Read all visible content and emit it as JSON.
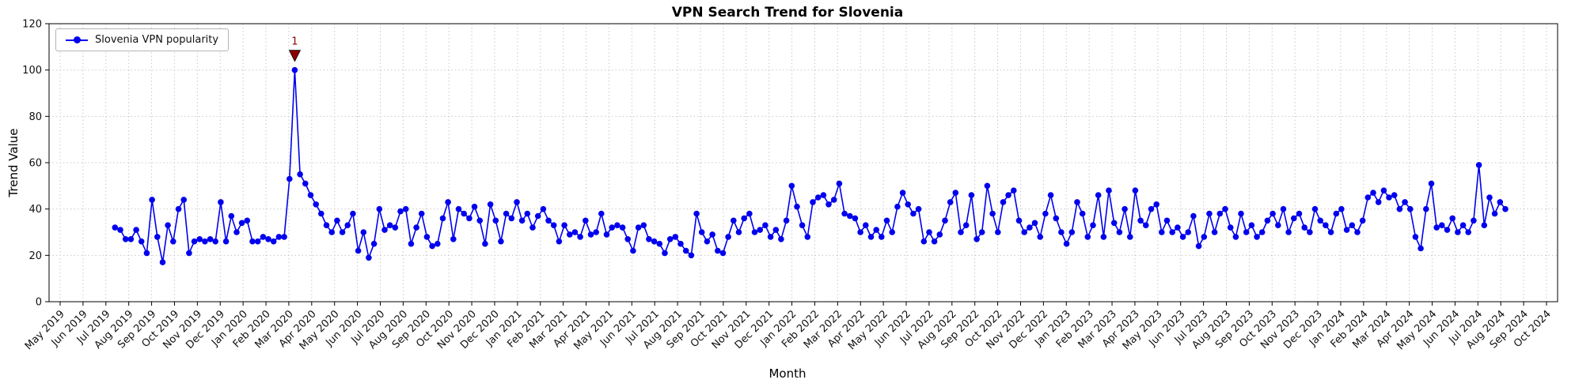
{
  "chart_data": {
    "type": "line",
    "title": "VPN Search Trend for Slovenia",
    "xlabel": "Month",
    "ylabel": "Trend Value",
    "ylim": [
      0,
      120
    ],
    "y_ticks": [
      0,
      20,
      40,
      60,
      80,
      100,
      120
    ],
    "grid": true,
    "legend_position": "upper left",
    "x_tick_labels": [
      "May 2019",
      "Jun 2019",
      "Jul 2019",
      "Aug 2019",
      "Sep 2019",
      "Oct 2019",
      "Nov 2019",
      "Dec 2019",
      "Jan 2020",
      "Feb 2020",
      "Mar 2020",
      "Apr 2020",
      "May 2020",
      "Jun 2020",
      "Jul 2020",
      "Aug 2020",
      "Sep 2020",
      "Oct 2020",
      "Nov 2020",
      "Dec 2020",
      "Jan 2021",
      "Feb 2021",
      "Mar 2021",
      "Apr 2021",
      "May 2021",
      "Jun 2021",
      "Jul 2021",
      "Aug 2021",
      "Sep 2021",
      "Oct 2021",
      "Nov 2021",
      "Dec 2021",
      "Jan 2022",
      "Feb 2022",
      "Mar 2022",
      "Apr 2022",
      "May 2022",
      "Jun 2022",
      "Jul 2022",
      "Aug 2022",
      "Sep 2022",
      "Oct 2022",
      "Nov 2022",
      "Dec 2022",
      "Jan 2023",
      "Feb 2023",
      "Mar 2023",
      "Apr 2023",
      "May 2023",
      "Jun 2023",
      "Jul 2023",
      "Aug 2023",
      "Sep 2023",
      "Oct 2023",
      "Nov 2023",
      "Dec 2023",
      "Jan 2024",
      "Feb 2024",
      "Mar 2024",
      "Apr 2024",
      "May 2024",
      "Jun 2024",
      "Jul 2024",
      "Aug 2024",
      "Sep 2024",
      "Oct 2024"
    ],
    "series": [
      {
        "name": "Slovenia VPN popularity",
        "color": "#0000ee",
        "interval": "weekly",
        "start_month_index": 2.4,
        "end_month_index": 63.2,
        "values": [
          32,
          31,
          27,
          27,
          31,
          26,
          21,
          44,
          28,
          17,
          33,
          26,
          40,
          44,
          21,
          26,
          27,
          26,
          27,
          26,
          43,
          26,
          37,
          30,
          34,
          35,
          26,
          26,
          28,
          27,
          26,
          28,
          28,
          53,
          100,
          55,
          51,
          46,
          42,
          38,
          33,
          30,
          35,
          30,
          33,
          38,
          22,
          30,
          19,
          25,
          40,
          31,
          33,
          32,
          39,
          40,
          25,
          32,
          38,
          28,
          24,
          25,
          36,
          43,
          27,
          40,
          38,
          36,
          41,
          35,
          25,
          42,
          35,
          26,
          38,
          36,
          43,
          35,
          38,
          32,
          37,
          40,
          35,
          33,
          26,
          33,
          29,
          30,
          28,
          35,
          29,
          30,
          38,
          29,
          32,
          33,
          32,
          27,
          22,
          32,
          33,
          27,
          26,
          25,
          21,
          27,
          28,
          25,
          22,
          20,
          38,
          30,
          26,
          29,
          22,
          21,
          28,
          35,
          30,
          36,
          38,
          30,
          31,
          33,
          28,
          31,
          27,
          35,
          50,
          41,
          33,
          28,
          43,
          45,
          46,
          42,
          44,
          51,
          38,
          37,
          36,
          30,
          33,
          28,
          31,
          28,
          35,
          30,
          41,
          47,
          42,
          38,
          40,
          26,
          30,
          26,
          29,
          35,
          43,
          47,
          30,
          33,
          46,
          27,
          30,
          50,
          38,
          30,
          43,
          46,
          48,
          35,
          30,
          32,
          34,
          28,
          38,
          46,
          36,
          30,
          25,
          30,
          43,
          38,
          28,
          33,
          46,
          28,
          48,
          34,
          30,
          40,
          28,
          48,
          35,
          33,
          40,
          42,
          30,
          35,
          30,
          32,
          28,
          30,
          37,
          24,
          28,
          38,
          30,
          38,
          40,
          32,
          28,
          38,
          30,
          33,
          28,
          30,
          35,
          38,
          33,
          40,
          30,
          36,
          38,
          32,
          30,
          40,
          35,
          33,
          30,
          38,
          40,
          31,
          33,
          30,
          35,
          45,
          47,
          43,
          48,
          45,
          46,
          40,
          43,
          40,
          28,
          23,
          40,
          51,
          32,
          33,
          31,
          36,
          30,
          33,
          30,
          35,
          59,
          33,
          45,
          38,
          43,
          40
        ]
      }
    ],
    "annotation": {
      "label": "1",
      "point_index": 34,
      "value": 100,
      "color": "#8b0000",
      "marker": "triangle-down"
    }
  }
}
